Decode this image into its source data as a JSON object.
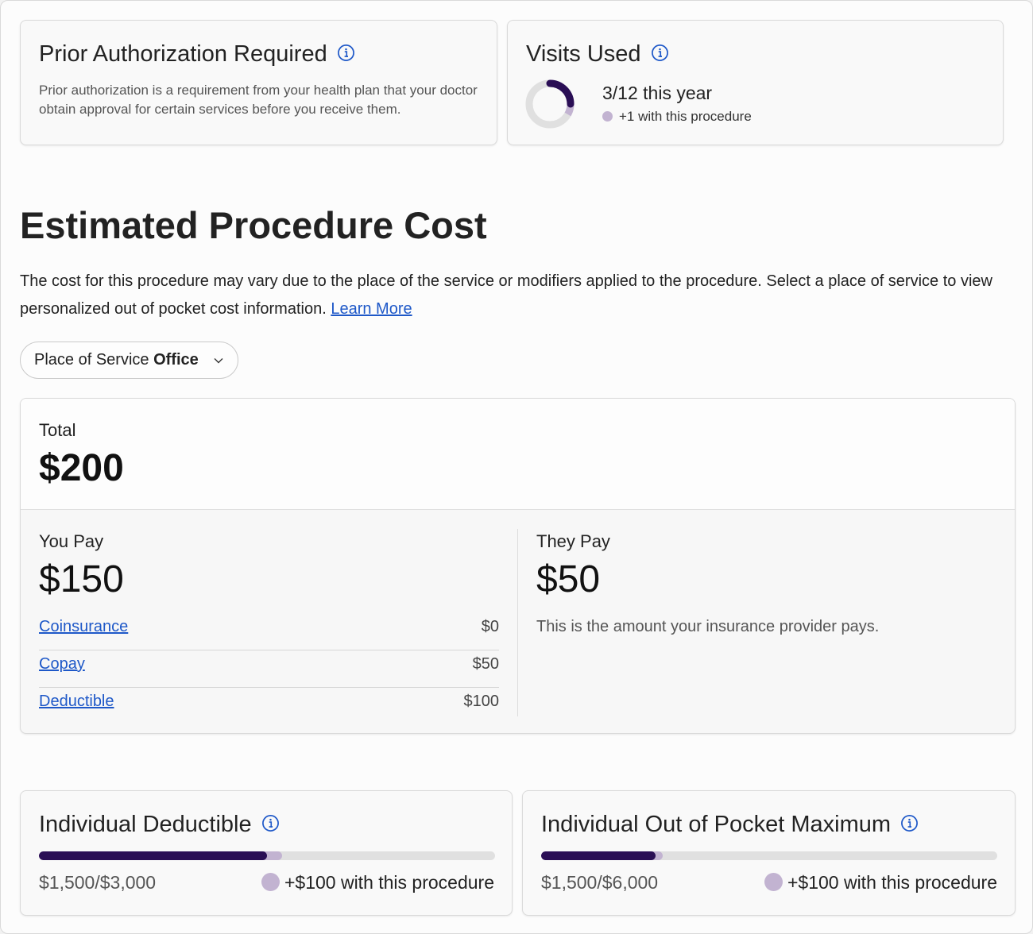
{
  "colors": {
    "accent_dark": "#2a0e55",
    "accent_light": "#c2b3d1",
    "link": "#1e58c8",
    "track": "#e0e0e0"
  },
  "prior_auth": {
    "title": "Prior Authorization Required",
    "icon": "info-icon",
    "description": "Prior authorization is a requirement from your health plan that your doctor obtain approval for certain services before you receive them."
  },
  "visits": {
    "title": "Visits Used",
    "icon": "info-icon",
    "used": 3,
    "total": 12,
    "added": 1,
    "count_text": "3/12 this year",
    "extra_text": "+1 with this procedure"
  },
  "estimate": {
    "title": "Estimated Procedure Cost",
    "description": "The cost for this procedure may vary due to the place of the service or modifiers applied to the procedure. Select a place of service to view personalized out of pocket cost information.",
    "learn_more": "Learn More",
    "place_of_service": {
      "label": "Place of Service",
      "value": "Office",
      "icon": "chevron-down-icon"
    }
  },
  "cost": {
    "total_label": "Total",
    "total_value": "$200",
    "you_pay_label": "You Pay",
    "you_pay_value": "$150",
    "they_pay_label": "They Pay",
    "they_pay_value": "$50",
    "they_pay_desc": "This is the amount your insurance provider pays.",
    "breakdown": [
      {
        "label": "Coinsurance",
        "value": "$0"
      },
      {
        "label": "Copay",
        "value": "$50"
      },
      {
        "label": "Deductible",
        "value": "$100"
      }
    ]
  },
  "deductible": {
    "title": "Individual Deductible",
    "icon": "info-icon",
    "amount_text": "$1,500/$3,000",
    "extra_text": "+$100 with this procedure",
    "used": 1500,
    "max": 3000,
    "added": 100
  },
  "out_of_pocket": {
    "title": "Individual Out of Pocket Maximum",
    "icon": "info-icon",
    "amount_text": "$1,500/$6,000",
    "extra_text": "+$100 with this procedure",
    "used": 1500,
    "max": 6000,
    "added": 100
  }
}
